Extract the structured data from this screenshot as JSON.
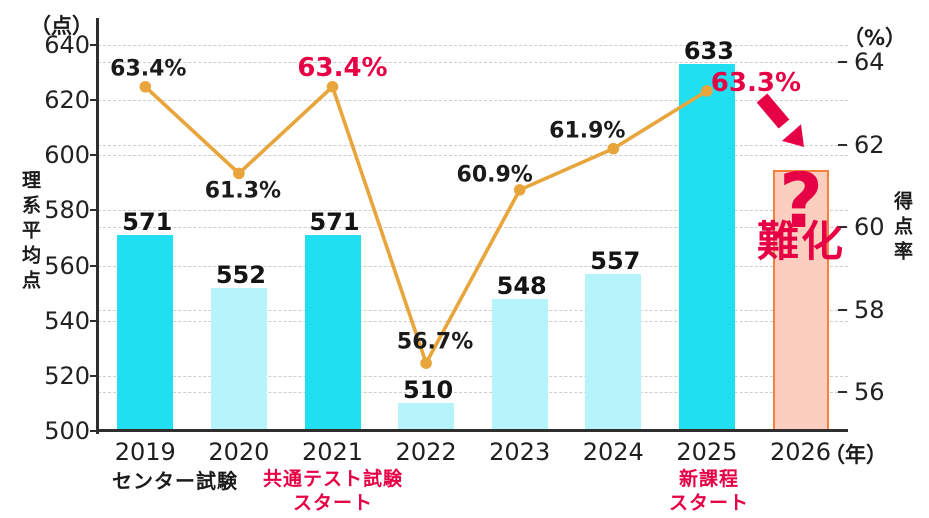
{
  "chart_data": {
    "type": "combo-bar-line",
    "categories": [
      "2019",
      "2020",
      "2021",
      "2022",
      "2023",
      "2024",
      "2025",
      "2026"
    ],
    "x_unit": "（年）",
    "left_axis": {
      "unit": "（点）",
      "title": "理系平均点",
      "min": 500,
      "max": 640,
      "tick_step": 20,
      "ticks": [
        640,
        620,
        600,
        580,
        560,
        540,
        520,
        500
      ]
    },
    "right_axis": {
      "unit": "（%）",
      "title": "得点率",
      "ticks": [
        64,
        62,
        60,
        58,
        56
      ]
    },
    "bars": {
      "series_name": "理系平均点",
      "values": [
        571,
        552,
        571,
        510,
        548,
        557,
        633,
        null
      ],
      "labels": [
        "571",
        "552",
        "571",
        "510",
        "548",
        "557",
        "633",
        ""
      ],
      "styles": [
        "bright",
        "light",
        "bright",
        "light",
        "light",
        "light",
        "bright",
        "forecast"
      ],
      "forecast_top_value": 594.5
    },
    "line": {
      "series_name": "得点率",
      "values": [
        63.4,
        61.3,
        63.4,
        56.7,
        60.9,
        61.9,
        63.3,
        null
      ],
      "labels": [
        "63.4%",
        "61.3%",
        "63.4%",
        "56.7%",
        "60.9%",
        "61.9%",
        "63.3%"
      ],
      "emphasis": [
        false,
        false,
        true,
        false,
        false,
        false,
        true
      ]
    },
    "annotations": {
      "center_exam": "センター試験",
      "kyotsu_line1": "共通テスト試験",
      "kyotsu_line2": "スタート",
      "shinkatei_line1": "新課程",
      "shinkatei_line2": "スタート",
      "question_mark": "?",
      "nanka": "難化"
    },
    "colors": {
      "bar_bright": "#1FDFF0",
      "bar_light": "#B5F4FA",
      "forecast_fill": "#FBCEBF",
      "forecast_border": "#F5813D",
      "line": "#E8A53B",
      "accent_red": "#E60044",
      "grid": "#CDCDCD",
      "axis": "#2E2E2E",
      "text": "#1B1B1B"
    }
  }
}
